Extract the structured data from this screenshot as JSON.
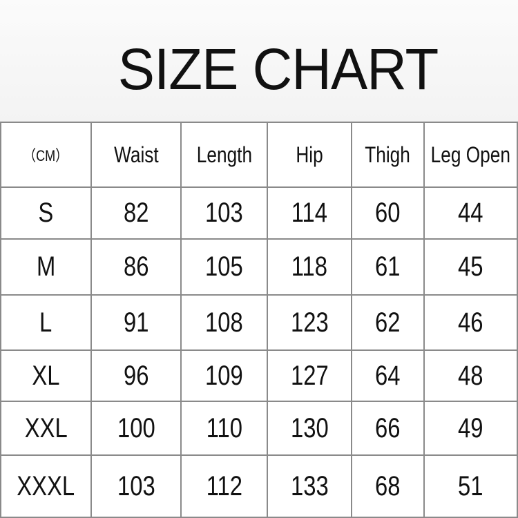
{
  "header": {
    "title": "SIZE CHART"
  },
  "table": {
    "columns": [
      "（CM）",
      "Waist",
      "Length",
      "Hip",
      "Thigh",
      "Leg Open"
    ],
    "rows": [
      [
        "S",
        82,
        103,
        114,
        60,
        44
      ],
      [
        "M",
        86,
        105,
        118,
        61,
        45
      ],
      [
        "L",
        91,
        108,
        123,
        62,
        46
      ],
      [
        "XL",
        96,
        109,
        127,
        64,
        48
      ],
      [
        "XXL",
        100,
        110,
        130,
        66,
        49
      ],
      [
        "XXXL",
        103,
        112,
        133,
        68,
        51
      ]
    ]
  }
}
